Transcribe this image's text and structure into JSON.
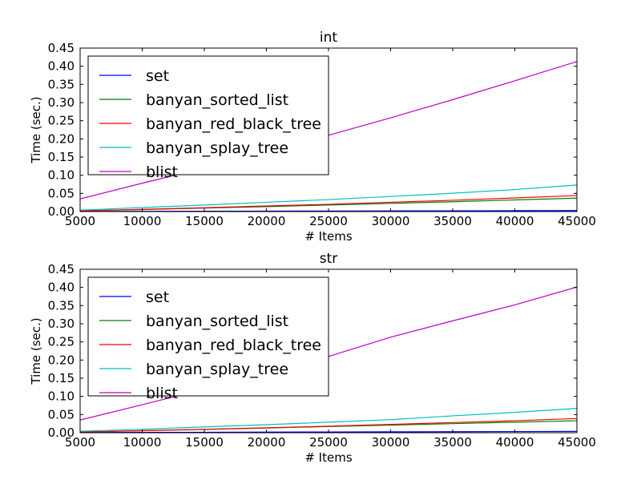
{
  "chart_data": [
    {
      "type": "line",
      "title": "int",
      "xlabel": "# Items",
      "ylabel": "Time (sec.)",
      "xlim": [
        5000,
        45000
      ],
      "ylim": [
        0,
        0.45
      ],
      "xticks": [
        "5000",
        "10000",
        "15000",
        "20000",
        "25000",
        "30000",
        "35000",
        "40000",
        "45000"
      ],
      "yticks": [
        "0.00",
        "0.05",
        "0.10",
        "0.15",
        "0.20",
        "0.25",
        "0.30",
        "0.35",
        "0.40",
        "0.45"
      ],
      "grid": false,
      "legend_position": "upper-left",
      "x": [
        5000,
        10000,
        15000,
        20000,
        25000,
        30000,
        35000,
        40000,
        45000
      ],
      "series": [
        {
          "name": "set",
          "color": "#0000ff",
          "values": [
            0.0003,
            0.0006,
            0.0009,
            0.0012,
            0.0015,
            0.0018,
            0.0021,
            0.0024,
            0.0027
          ]
        },
        {
          "name": "banyan_sorted_list",
          "color": "#008000",
          "values": [
            0.002,
            0.0055,
            0.0095,
            0.0135,
            0.018,
            0.0225,
            0.027,
            0.032,
            0.037
          ]
        },
        {
          "name": "banyan_red_black_tree",
          "color": "#ff0000",
          "values": [
            0.002,
            0.006,
            0.0105,
            0.0155,
            0.02,
            0.0255,
            0.031,
            0.0375,
            0.044
          ]
        },
        {
          "name": "banyan_splay_tree",
          "color": "#00bfbf",
          "values": [
            0.004,
            0.011,
            0.018,
            0.0255,
            0.033,
            0.0415,
            0.0505,
            0.0605,
            0.073
          ]
        },
        {
          "name": "blist",
          "color": "#bf00bf",
          "values": [
            0.035,
            0.078,
            0.12,
            0.165,
            0.21,
            0.258,
            0.308,
            0.36,
            0.413
          ]
        }
      ]
    },
    {
      "type": "line",
      "title": "str",
      "xlabel": "# Items",
      "ylabel": "Time (sec.)",
      "xlim": [
        5000,
        45000
      ],
      "ylim": [
        0,
        0.45
      ],
      "xticks": [
        "5000",
        "10000",
        "15000",
        "20000",
        "25000",
        "30000",
        "35000",
        "40000",
        "45000"
      ],
      "yticks": [
        "0.00",
        "0.05",
        "0.10",
        "0.15",
        "0.20",
        "0.25",
        "0.30",
        "0.35",
        "0.40",
        "0.45"
      ],
      "grid": false,
      "legend_position": "upper-left",
      "x": [
        5000,
        10000,
        15000,
        20000,
        25000,
        30000,
        35000,
        40000,
        45000
      ],
      "series": [
        {
          "name": "set",
          "color": "#0000ff",
          "values": [
            0.0004,
            0.0008,
            0.0012,
            0.0016,
            0.002,
            0.0024,
            0.0028,
            0.0032,
            0.0036
          ]
        },
        {
          "name": "banyan_sorted_list",
          "color": "#008000",
          "values": [
            0.002,
            0.0055,
            0.009,
            0.013,
            0.017,
            0.021,
            0.025,
            0.029,
            0.033
          ]
        },
        {
          "name": "banyan_red_black_tree",
          "color": "#ff0000",
          "values": [
            0.002,
            0.0055,
            0.0095,
            0.0135,
            0.018,
            0.023,
            0.028,
            0.033,
            0.039
          ]
        },
        {
          "name": "banyan_splay_tree",
          "color": "#00bfbf",
          "values": [
            0.004,
            0.0095,
            0.016,
            0.022,
            0.029,
            0.036,
            0.0465,
            0.056,
            0.067
          ]
        },
        {
          "name": "blist",
          "color": "#bf00bf",
          "values": [
            0.035,
            0.077,
            0.12,
            0.163,
            0.21,
            0.263,
            0.308,
            0.352,
            0.401
          ]
        }
      ]
    }
  ]
}
